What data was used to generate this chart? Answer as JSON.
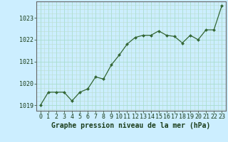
{
  "x": [
    0,
    1,
    2,
    3,
    4,
    5,
    6,
    7,
    8,
    9,
    10,
    11,
    12,
    13,
    14,
    15,
    16,
    17,
    18,
    19,
    20,
    21,
    22,
    23
  ],
  "y": [
    1019.0,
    1019.6,
    1019.6,
    1019.6,
    1019.2,
    1019.6,
    1019.75,
    1020.3,
    1020.2,
    1020.85,
    1021.3,
    1021.8,
    1022.1,
    1022.2,
    1022.2,
    1022.4,
    1022.2,
    1022.15,
    1021.85,
    1022.2,
    1022.0,
    1022.45,
    1022.45,
    1023.55
  ],
  "line_color": "#336633",
  "marker": "D",
  "marker_size": 2.0,
  "bg_color": "#cceeff",
  "grid_color": "#aaddcc",
  "xlabel": "Graphe pression niveau de la mer (hPa)",
  "xlabel_fontsize": 7,
  "tick_fontsize": 6,
  "ylim": [
    1018.75,
    1023.75
  ],
  "yticks": [
    1019,
    1020,
    1021,
    1022,
    1023
  ],
  "title_color": "#1a3d1a",
  "border_color": "#666666",
  "minor_grid_color": "#bbddcc"
}
